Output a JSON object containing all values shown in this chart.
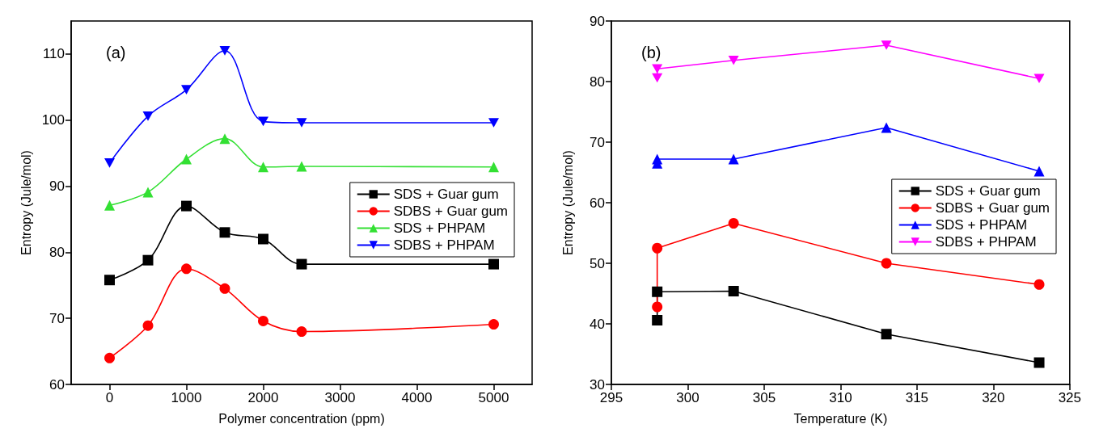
{
  "chart_data": [
    {
      "type": "line",
      "title": "(a)",
      "xlabel": "Polymer concentration (ppm)",
      "ylabel": "Entropy (Jule/mol)",
      "xlim": [
        -500,
        5500
      ],
      "xticks": [
        0,
        1000,
        2000,
        3000,
        4000,
        5000
      ],
      "ylim": [
        60,
        115
      ],
      "yticks": [
        60,
        70,
        80,
        90,
        100,
        110
      ],
      "legend": "right",
      "grid": false,
      "x": [
        0,
        500,
        1000,
        1500,
        2000,
        2500,
        5000
      ],
      "series": [
        {
          "name": "SDS + Guar gum",
          "color": "#000000",
          "marker": "square",
          "values": [
            75.8,
            78.8,
            87,
            83,
            82,
            78.2,
            78.2
          ]
        },
        {
          "name": "SDBS + Guar gum",
          "color": "#ff0000",
          "marker": "circle",
          "values": [
            64,
            68.9,
            77.5,
            74.5,
            69.6,
            68,
            69.1
          ]
        },
        {
          "name": "SDS + PHPAM",
          "color": "#33e033",
          "marker": "triangle",
          "values": [
            87.1,
            89.1,
            94.1,
            97.2,
            92.9,
            93,
            92.9
          ]
        },
        {
          "name": "SDBS + PHPAM",
          "color": "#0000ff",
          "marker": "triangle_down",
          "values": [
            93.5,
            100.6,
            104.6,
            110.5,
            99.8,
            99.6,
            99.6
          ]
        }
      ]
    },
    {
      "type": "line",
      "title": "(b)",
      "xlabel": "Temperature (K)",
      "ylabel": "Entropy (Jule/mol)",
      "xlim": [
        295,
        325
      ],
      "xticks": [
        295,
        300,
        305,
        310,
        315,
        320,
        325
      ],
      "ylim": [
        30,
        90
      ],
      "yticks": [
        30,
        40,
        50,
        60,
        70,
        80,
        90
      ],
      "legend": "right",
      "grid": false,
      "x": [
        298,
        298,
        303,
        313,
        323
      ],
      "series": [
        {
          "name": "SDS + Guar gum",
          "color": "#000000",
          "marker": "square",
          "values": [
            40.6,
            45.3,
            45.4,
            38.3,
            33.6
          ]
        },
        {
          "name": "SDBS + Guar gum",
          "color": "#ff0000",
          "marker": "circle",
          "values": [
            42.8,
            52.5,
            56.6,
            50,
            46.5
          ]
        },
        {
          "name": "SDS + PHPAM",
          "color": "#0000ff",
          "marker": "triangle",
          "values": [
            66.5,
            67.2,
            67.2,
            72.4,
            65.2
          ]
        },
        {
          "name": "SDBS + PHPAM",
          "color": "#ff00ff",
          "marker": "triangle_down",
          "values": [
            80.6,
            82.1,
            83.5,
            86,
            80.5
          ]
        }
      ]
    }
  ]
}
